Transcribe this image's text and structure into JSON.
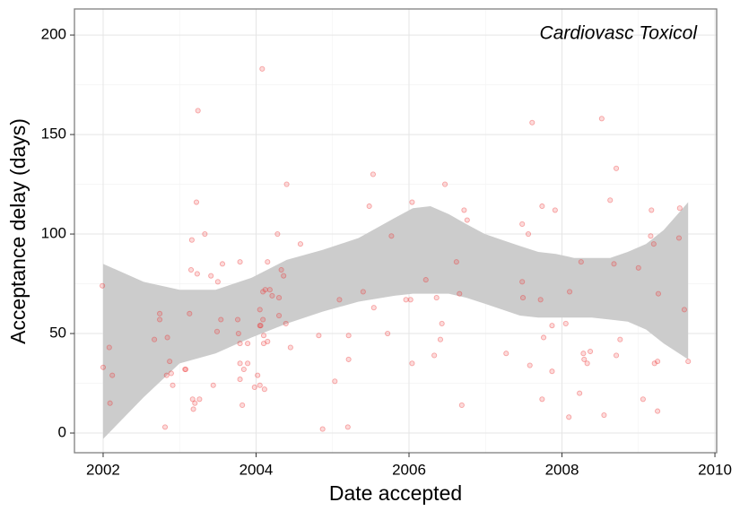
{
  "chart_data": {
    "type": "scatter",
    "annotation": "Cardiovasc Toxicol",
    "x_label": "Date accepted",
    "y_label": "Acceptance delay (days)",
    "xlim": [
      2001.625,
      2010.023
    ],
    "ylim": [
      -9.9,
      213.1
    ],
    "xticks": [
      2002,
      2004,
      2006,
      2008,
      2010
    ],
    "yticks": [
      0,
      50,
      100,
      150,
      200
    ],
    "grid": true,
    "band_color": "#cccccc",
    "series": [
      {
        "color": "#ee3333",
        "x": [
          2001.99,
          2002.0,
          2002.08,
          2002.09,
          2002.12,
          2002.67,
          2002.74,
          2002.74,
          2002.81,
          2002.83,
          2002.84,
          2002.87,
          2002.89,
          2002.91,
          2003.07,
          2003.08,
          2003.13,
          2003.15,
          2003.16,
          2003.17,
          2003.18,
          2003.2,
          2003.22,
          2003.23,
          2003.24,
          2003.26,
          2003.33,
          2003.41,
          2003.44,
          2003.49,
          2003.5,
          2003.54,
          2003.56,
          2003.76,
          2003.77,
          2003.79,
          2003.79,
          2003.79,
          2003.79,
          2003.82,
          2003.84,
          2003.89,
          2003.89,
          2003.98,
          2004.02,
          2004.05,
          2004.05,
          2004.05,
          2004.06,
          2004.08,
          2004.09,
          2004.09,
          2004.1,
          2004.1,
          2004.11,
          2004.12,
          2004.15,
          2004.15,
          2004.18,
          2004.21,
          2004.28,
          2004.3,
          2004.3,
          2004.33,
          2004.36,
          2004.39,
          2004.4,
          2004.45,
          2004.58,
          2004.82,
          2004.87,
          2005.03,
          2005.09,
          2005.2,
          2005.21,
          2005.21,
          2005.4,
          2005.48,
          2005.53,
          2005.54,
          2005.72,
          2005.77,
          2005.96,
          2006.02,
          2006.04,
          2006.04,
          2006.22,
          2006.33,
          2006.36,
          2006.41,
          2006.43,
          2006.47,
          2006.62,
          2006.66,
          2006.69,
          2006.72,
          2006.76,
          2007.27,
          2007.48,
          2007.48,
          2007.49,
          2007.56,
          2007.58,
          2007.61,
          2007.72,
          2007.74,
          2007.74,
          2007.76,
          2007.87,
          2007.87,
          2007.91,
          2008.05,
          2008.09,
          2008.1,
          2008.23,
          2008.25,
          2008.28,
          2008.29,
          2008.33,
          2008.37,
          2008.52,
          2008.55,
          2008.63,
          2008.68,
          2008.71,
          2008.71,
          2008.76,
          2009.0,
          2009.06,
          2009.16,
          2009.17,
          2009.2,
          2009.21,
          2009.25,
          2009.25,
          2009.26,
          2009.53,
          2009.54,
          2009.6,
          2009.65
        ],
        "values": [
          74,
          33,
          43,
          15,
          29,
          47,
          60,
          57,
          3,
          29,
          48,
          36,
          30,
          24,
          32,
          32,
          60,
          82,
          97,
          17,
          12,
          15,
          116,
          80,
          162,
          17,
          100,
          79,
          24,
          51,
          76,
          57,
          85,
          57,
          50,
          86,
          45,
          35,
          27,
          14,
          32,
          45,
          35,
          23,
          29,
          24,
          62,
          54,
          54,
          183,
          71,
          57,
          45,
          49,
          22,
          72,
          86,
          46,
          72,
          69,
          100,
          68,
          59,
          82,
          79,
          55,
          125,
          43,
          95,
          49,
          2,
          26,
          67,
          3,
          49,
          37,
          71,
          114,
          130,
          63,
          50,
          99,
          67,
          67,
          116,
          35,
          77,
          39,
          68,
          47,
          55,
          125,
          86,
          70,
          14,
          112,
          107,
          40,
          105,
          76,
          68,
          100,
          34,
          156,
          67,
          114,
          17,
          48,
          54,
          31,
          112,
          55,
          8,
          71,
          20,
          86,
          40,
          37,
          35,
          41,
          158,
          9,
          117,
          85,
          133,
          39,
          47,
          83,
          17,
          99,
          112,
          95,
          35,
          36,
          11,
          70,
          98,
          113,
          62,
          36
        ]
      }
    ],
    "band": {
      "x": [
        2002.0,
        2002.53,
        2003.0,
        2003.47,
        2003.94,
        2004.4,
        2004.87,
        2005.34,
        2005.81,
        2006.05,
        2006.28,
        2006.52,
        2006.75,
        2006.99,
        2007.22,
        2007.45,
        2007.69,
        2007.92,
        2008.16,
        2008.39,
        2008.63,
        2008.86,
        2009.1,
        2009.33,
        2009.65
      ],
      "upper": [
        85,
        76,
        72,
        72,
        78,
        87,
        92,
        98,
        108,
        113,
        114,
        110,
        105,
        100,
        97,
        94,
        91,
        90,
        88,
        88,
        88,
        91,
        95,
        102,
        116
      ],
      "lower": [
        -3,
        18,
        35,
        40,
        48,
        55,
        61,
        66,
        69,
        70,
        70,
        70,
        68,
        65,
        62,
        59,
        58,
        58,
        58,
        58,
        57,
        56,
        52,
        45,
        37
      ]
    }
  }
}
